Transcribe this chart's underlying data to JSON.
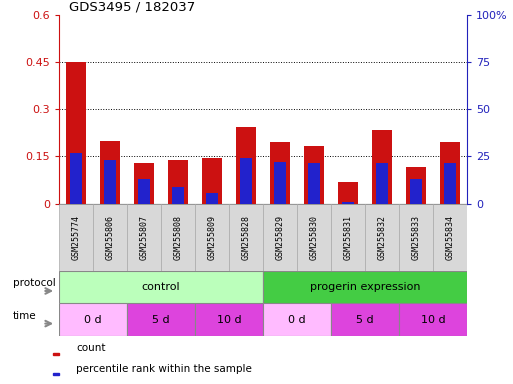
{
  "title": "GDS3495 / 182037",
  "samples": [
    "GSM255774",
    "GSM255806",
    "GSM255807",
    "GSM255808",
    "GSM255809",
    "GSM255828",
    "GSM255829",
    "GSM255830",
    "GSM255831",
    "GSM255832",
    "GSM255833",
    "GSM255834"
  ],
  "red_values": [
    0.45,
    0.2,
    0.13,
    0.14,
    0.145,
    0.245,
    0.195,
    0.185,
    0.07,
    0.235,
    0.115,
    0.195
  ],
  "blue_values_pct": [
    27,
    23,
    13,
    9,
    5.5,
    24,
    22,
    21.5,
    1.0,
    21.5,
    13,
    21.5
  ],
  "ylim_left": [
    0,
    0.6
  ],
  "ylim_right": [
    0,
    100
  ],
  "yticks_left": [
    0,
    0.15,
    0.3,
    0.45,
    0.6
  ],
  "yticks_right": [
    0,
    25,
    50,
    75,
    100
  ],
  "ytick_labels_left": [
    "0",
    "0.15",
    "0.3",
    "0.45",
    "0.6"
  ],
  "ytick_labels_right": [
    "0",
    "25",
    "50",
    "75",
    "100%"
  ],
  "bar_width": 0.6,
  "blue_bar_width": 0.35,
  "red_color": "#cc1111",
  "blue_color": "#2222cc",
  "bg_color": "#ffffff",
  "grid_color": "#000000",
  "axis_color_left": "#cc1111",
  "axis_color_right": "#2222bb",
  "tick_box_color": "#d8d8d8",
  "tick_box_edge_color": "#aaaaaa",
  "protocol_control_color": "#bbffbb",
  "protocol_progerin_color": "#44cc44",
  "time_0d_color": "#ffbbff",
  "time_5d_10d_color": "#dd44dd",
  "label_row_edge": "#888888"
}
